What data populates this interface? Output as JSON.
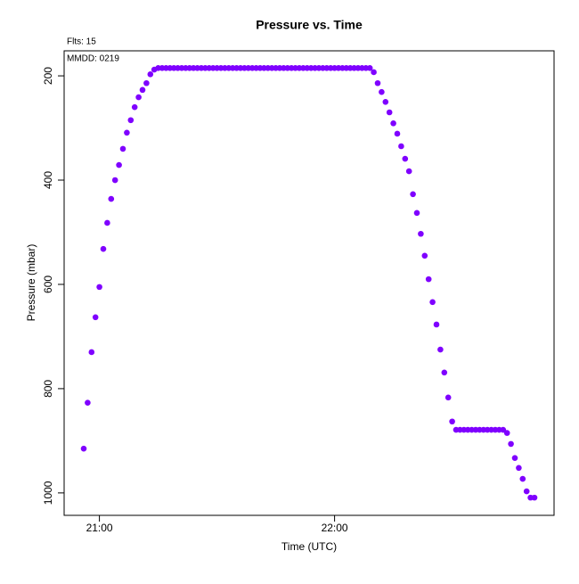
{
  "chart_data": {
    "type": "scatter",
    "title": "Pressure  vs. Time",
    "subtitle": "Flts: 15",
    "annotation": "MMDD: 0219",
    "xlabel": "Time (UTC)",
    "ylabel": "Pressure (mbar)",
    "color": "#7f00ff",
    "xlim": [
      "20:51",
      "22:56"
    ],
    "xticks": [
      "21:00",
      "22:00"
    ],
    "ylim": [
      1043,
      152
    ],
    "yticks": [
      200,
      400,
      600,
      800,
      1000
    ],
    "x": [
      "20:56",
      "20:57",
      "20:58",
      "20:59",
      "21:00",
      "21:01",
      "21:02",
      "21:03",
      "21:04",
      "21:05",
      "21:06",
      "21:07",
      "21:08",
      "21:09",
      "21:10",
      "21:11",
      "21:12",
      "21:13",
      "21:14",
      "21:15",
      "21:16",
      "21:17",
      "21:18",
      "21:19",
      "21:20",
      "21:21",
      "21:22",
      "21:23",
      "21:24",
      "21:25",
      "21:26",
      "21:27",
      "21:28",
      "21:29",
      "21:30",
      "21:31",
      "21:32",
      "21:33",
      "21:34",
      "21:35",
      "21:36",
      "21:37",
      "21:38",
      "21:39",
      "21:40",
      "21:41",
      "21:42",
      "21:43",
      "21:44",
      "21:45",
      "21:46",
      "21:47",
      "21:48",
      "21:49",
      "21:50",
      "21:51",
      "21:52",
      "21:53",
      "21:54",
      "21:55",
      "21:56",
      "21:57",
      "21:58",
      "21:59",
      "22:00",
      "22:01",
      "22:02",
      "22:03",
      "22:04",
      "22:05",
      "22:06",
      "22:07",
      "22:08",
      "22:09",
      "22:10",
      "22:11",
      "22:12",
      "22:13",
      "22:14",
      "22:15",
      "22:16",
      "22:17",
      "22:18",
      "22:19",
      "22:20",
      "22:21",
      "22:22",
      "22:23",
      "22:24",
      "22:25",
      "22:26",
      "22:27",
      "22:28",
      "22:29",
      "22:30",
      "22:31",
      "22:32",
      "22:33",
      "22:34",
      "22:35",
      "22:36",
      "22:37",
      "22:38",
      "22:39",
      "22:40",
      "22:41",
      "22:42",
      "22:43",
      "22:44",
      "22:45",
      "22:46",
      "22:47",
      "22:48",
      "22:49",
      "22:50",
      "22:51"
    ],
    "values": [
      915,
      827,
      730,
      663,
      605,
      532,
      482,
      436,
      400,
      371,
      340,
      309,
      285,
      260,
      241,
      227,
      214,
      197,
      188,
      185,
      185,
      185,
      185,
      185,
      185,
      185,
      185,
      185,
      185,
      185,
      185,
      185,
      185,
      185,
      185,
      185,
      185,
      185,
      185,
      185,
      185,
      185,
      185,
      185,
      185,
      185,
      185,
      185,
      185,
      185,
      185,
      185,
      185,
      185,
      185,
      185,
      185,
      185,
      185,
      185,
      185,
      185,
      185,
      185,
      185,
      185,
      185,
      185,
      185,
      185,
      185,
      185,
      185,
      185,
      193,
      214,
      231,
      250,
      270,
      291,
      311,
      335,
      359,
      383,
      427,
      463,
      503,
      545,
      590,
      634,
      677,
      725,
      769,
      817,
      863,
      879,
      879,
      879,
      879,
      879,
      879,
      879,
      879,
      879,
      879,
      879,
      879,
      879,
      885,
      906,
      933,
      952,
      973,
      997,
      1009,
      1009
    ]
  }
}
